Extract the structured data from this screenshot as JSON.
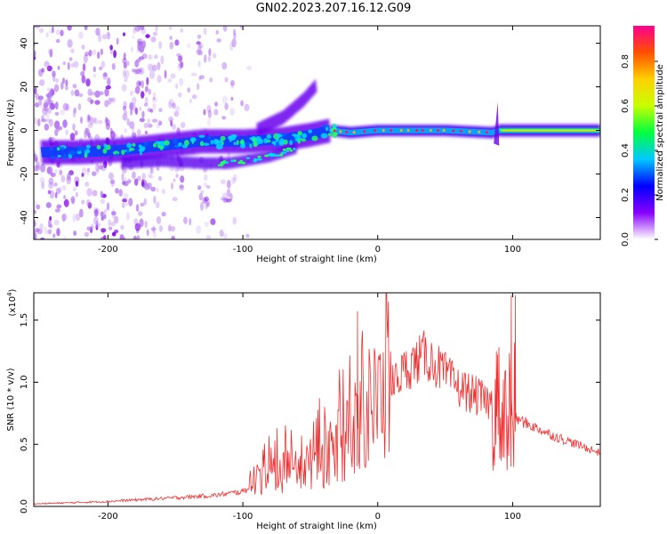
{
  "page": {
    "title": "GN02.2023.207.16.12.G09"
  },
  "colorbar": {
    "label": "Normalized spectral amplitude",
    "ticks": [
      {
        "v": 0.0,
        "label": "0.0"
      },
      {
        "v": 0.2,
        "label": "0.2"
      },
      {
        "v": 0.4,
        "label": "0.4"
      },
      {
        "v": 0.6,
        "label": "0.6"
      },
      {
        "v": 0.8,
        "label": "0.8"
      }
    ],
    "stops": [
      "#ffffff",
      "#8800ff",
      "#0000ff",
      "#00c8ff",
      "#00ff40",
      "#c8ff00",
      "#ffd000",
      "#ff5000",
      "#ff0090"
    ]
  },
  "chart_data": [
    {
      "type": "heatmap",
      "xlabel": "Height of straight line (km)",
      "ylabel": "Frequency (Hz)",
      "xlim": [
        -255,
        165
      ],
      "ylim": [
        -50,
        48
      ],
      "xticks": [
        {
          "v": -200,
          "label": "-200"
        },
        {
          "v": -100,
          "label": "-100"
        },
        {
          "v": 0,
          "label": "0"
        },
        {
          "v": 100,
          "label": "100"
        }
      ],
      "yticks": [
        {
          "v": -40,
          "label": "-40"
        },
        {
          "v": -20,
          "label": "-20"
        },
        {
          "v": 0,
          "label": "0"
        },
        {
          "v": 20,
          "label": "20"
        },
        {
          "v": 40,
          "label": "40"
        }
      ],
      "main_trace": [
        {
          "x": -250,
          "y": -10
        },
        {
          "x": -220,
          "y": -10
        },
        {
          "x": -190,
          "y": -9
        },
        {
          "x": -160,
          "y": -7
        },
        {
          "x": -130,
          "y": -5
        },
        {
          "x": -100,
          "y": -5
        },
        {
          "x": -70,
          "y": -4
        },
        {
          "x": -50,
          "y": -2
        },
        {
          "x": -35,
          "y": 0
        },
        {
          "x": -20,
          "y": -1
        },
        {
          "x": 0,
          "y": 0
        },
        {
          "x": 50,
          "y": 0
        },
        {
          "x": 85,
          "y": -1
        },
        {
          "x": 90,
          "y": 0
        },
        {
          "x": 165,
          "y": 0
        }
      ],
      "branch_upper": [
        {
          "x": -90,
          "y": 0
        },
        {
          "x": -70,
          "y": 6
        },
        {
          "x": -55,
          "y": 14
        },
        {
          "x": -45,
          "y": 21
        }
      ],
      "branch_lower": [
        {
          "x": -190,
          "y": -15
        },
        {
          "x": -160,
          "y": -14
        },
        {
          "x": -130,
          "y": -15
        },
        {
          "x": -110,
          "y": -15
        },
        {
          "x": -80,
          "y": -12
        },
        {
          "x": -60,
          "y": -8
        }
      ]
    },
    {
      "type": "line",
      "xlabel": "Height of straight line (km)",
      "ylabel": "SNR (10 * v/v)",
      "scale_label": "(x10",
      "scale_exp": "4",
      "scale_close": ")",
      "xlim": [
        -255,
        165
      ],
      "ylim": [
        0,
        1.72
      ],
      "xticks": [
        {
          "v": -200,
          "label": "-200"
        },
        {
          "v": -100,
          "label": "-100"
        },
        {
          "v": 0,
          "label": "0"
        },
        {
          "v": 100,
          "label": "100"
        }
      ],
      "yticks": [
        {
          "v": 0.0,
          "label": "0.0"
        },
        {
          "v": 0.5,
          "label": "0.5"
        },
        {
          "v": 1.0,
          "label": "1.0"
        },
        {
          "v": 1.5,
          "label": "1.5"
        }
      ],
      "line_color": "#f03030",
      "envelope": [
        {
          "x": -255,
          "y": 0.02
        },
        {
          "x": -200,
          "y": 0.04
        },
        {
          "x": -150,
          "y": 0.07
        },
        {
          "x": -120,
          "y": 0.09
        },
        {
          "x": -100,
          "y": 0.12
        },
        {
          "x": -90,
          "y": 0.2
        },
        {
          "x": -80,
          "y": 0.25
        },
        {
          "x": -60,
          "y": 0.3
        },
        {
          "x": -40,
          "y": 0.38
        },
        {
          "x": -20,
          "y": 0.55
        },
        {
          "x": 0,
          "y": 0.85
        },
        {
          "x": 20,
          "y": 1.1
        },
        {
          "x": 35,
          "y": 1.22
        },
        {
          "x": 45,
          "y": 1.12
        },
        {
          "x": 60,
          "y": 0.96
        },
        {
          "x": 80,
          "y": 0.85
        },
        {
          "x": 95,
          "y": 0.78
        },
        {
          "x": 100,
          "y": 0.72
        },
        {
          "x": 130,
          "y": 0.57
        },
        {
          "x": 165,
          "y": 0.43
        }
      ],
      "spikes": [
        {
          "x": -15,
          "y": 1.57
        },
        {
          "x": 99,
          "y": 1.7
        },
        {
          "x": 102,
          "y": 1.7
        },
        {
          "x": 88,
          "y": 1.25
        }
      ]
    }
  ]
}
